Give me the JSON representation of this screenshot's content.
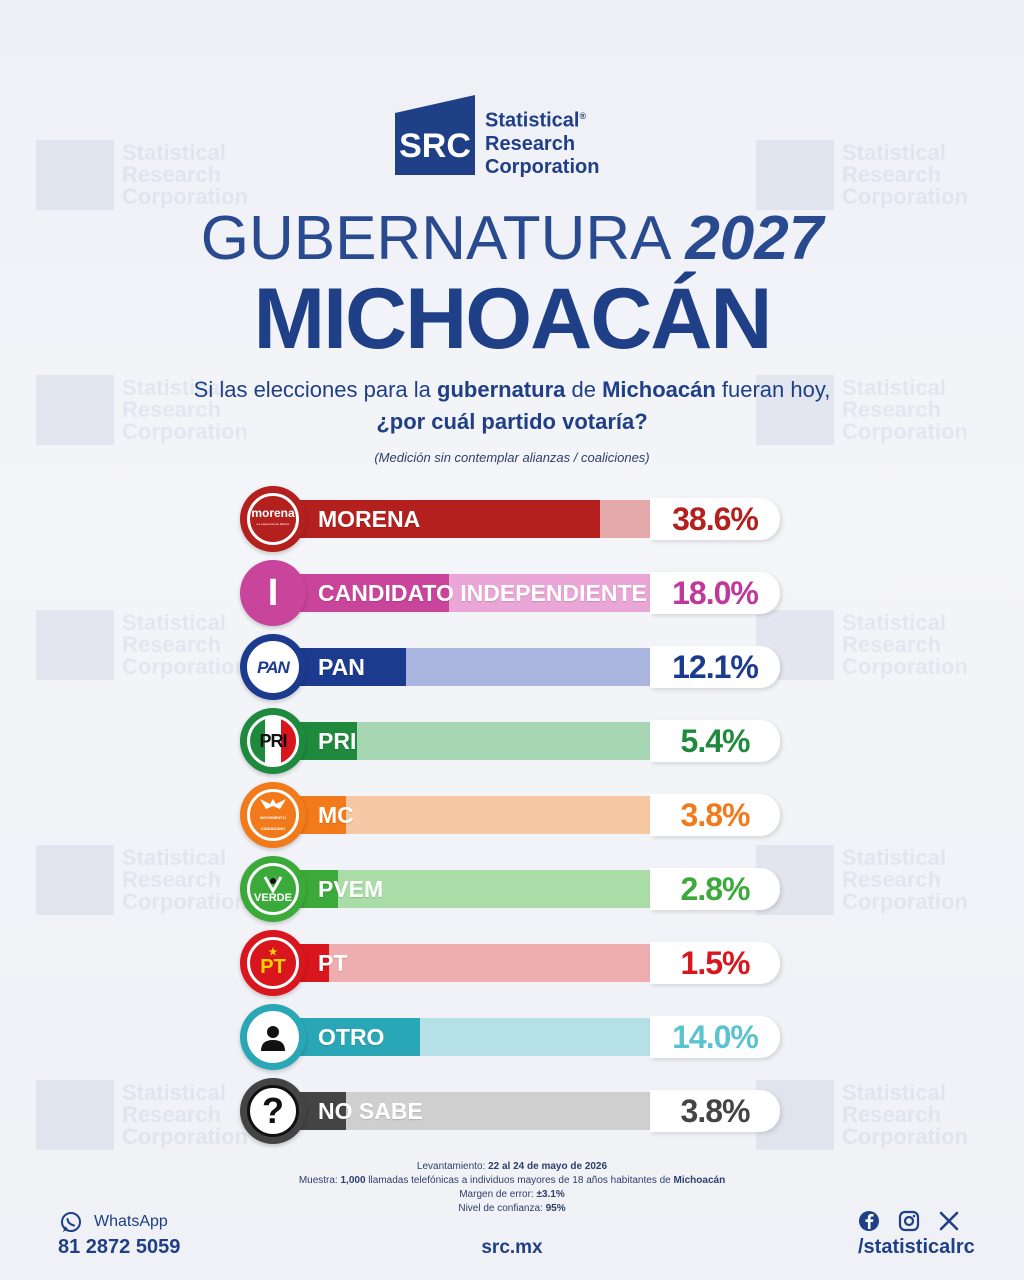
{
  "brand": {
    "logo_letters": "SRC",
    "line1": "Statistical",
    "line2": "Research",
    "line3": "Corporation",
    "registered": "®",
    "color": "#1f3f86"
  },
  "header": {
    "title_word": "GUBERNATURA",
    "title_year": "2027",
    "state": "MICHOACÁN"
  },
  "question": {
    "p1": "Si las elecciones para la ",
    "b1": "gubernatura",
    "p2": " de ",
    "b2": "Michoacán",
    "p3": " fueran hoy,",
    "line2": "¿por cuál partido votaría?",
    "note": "(Medición sin contemplar alianzas / coaliciones)"
  },
  "chart_data": {
    "type": "bar",
    "orientation": "horizontal",
    "categories": [
      "MORENA",
      "CANDIDATO INDEPENDIENTE",
      "PAN",
      "PRI",
      "MC",
      "PVEM",
      "PT",
      "OTRO",
      "NO SABE"
    ],
    "values": [
      38.6,
      18.0,
      12.1,
      5.4,
      3.8,
      2.8,
      1.5,
      14.0,
      3.8
    ],
    "value_labels": [
      "38.6%",
      "18.0%",
      "12.1%",
      "5.4%",
      "3.8%",
      "2.8%",
      "1.5%",
      "14.0%",
      "3.8%"
    ],
    "colors": [
      "#b3201e",
      "#c9449b",
      "#1c3a8e",
      "#1f8a3e",
      "#f27a1a",
      "#3caa3a",
      "#d9161d",
      "#2aa7b6",
      "#444444"
    ],
    "light_colors": [
      "#e3a9ab",
      "#e9a6d6",
      "#aab6e0",
      "#a6d6b2",
      "#f6c8a3",
      "#a9dca6",
      "#eeadaf",
      "#b5e0e6",
      "#cfcfcf"
    ],
    "pct_colors": [
      "#b3201e",
      "#c0399a",
      "#1c3a8e",
      "#1f8a3e",
      "#f27a1a",
      "#3caa3a",
      "#d9161d",
      "#5bc3cf",
      "#444444"
    ],
    "badges": [
      "morena",
      "I",
      "PAN",
      "PRI",
      "MC",
      "VERDE",
      "PT",
      "person-icon",
      "?"
    ],
    "xlim": [
      0,
      100
    ]
  },
  "badge_text": {
    "morena_top": "morena",
    "morena_sub": "La esperanza de México",
    "independiente": "I",
    "pan": "PAN",
    "pri": "PRI",
    "mc_sub": "MOVIMIENTO CIUDADANO",
    "verde": "VERDE",
    "pt": "PT",
    "nosabe": "?"
  },
  "footnotes": {
    "l1_label": "Levantamiento: ",
    "l1_value": "22 al 24 de mayo de 2026",
    "l2_label": "Muestra: ",
    "l2_value": "1,000",
    "l2_rest": " llamadas telefónicas a individuos mayores de 18 años habitantes de ",
    "l2_state": "Michoacán",
    "l3_label": "Margen de error: ",
    "l3_value": "±3.1%",
    "l4_label": "Nivel de confianza: ",
    "l4_value": "95%"
  },
  "footer": {
    "whatsapp_label": "WhatsApp",
    "phone": "81 2872 5059",
    "site": "src.mx",
    "handle": "/statisticalrc",
    "social_icons": [
      "facebook-icon",
      "instagram-icon",
      "x-icon"
    ]
  }
}
